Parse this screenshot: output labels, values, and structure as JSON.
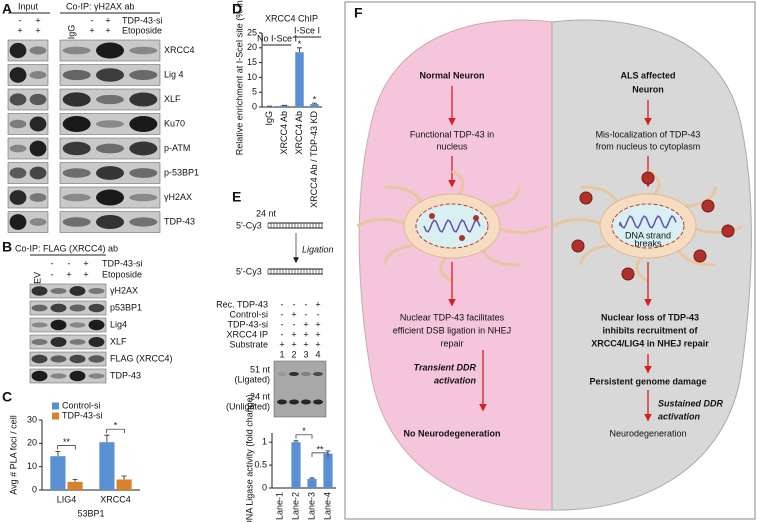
{
  "chart_data": [
    {
      "type": "bar",
      "panel": "C",
      "ylabel": "Avg # PLA foci / cell",
      "xlabel": "53BP1",
      "categories": [
        "LIG4",
        "XRCC4"
      ],
      "series": [
        {
          "name": "Control-si",
          "color": "#5b8fd4",
          "values": [
            14.5,
            20.5
          ],
          "errors": [
            2,
            3
          ]
        },
        {
          "name": "TDP-43-si",
          "color": "#d9822b",
          "values": [
            3.5,
            4.5
          ],
          "errors": [
            1,
            1.5
          ]
        }
      ],
      "ylim": [
        0,
        30
      ],
      "yticks": [
        0,
        10,
        20,
        30
      ],
      "annotations": [
        "**",
        "*"
      ]
    },
    {
      "type": "bar",
      "panel": "D",
      "title": "XRCC4 ChIP",
      "ylabel": "Relative enrichment at I-SceI site (% input)",
      "groups": [
        "No I-Sce I",
        "I-Sce I"
      ],
      "categories": [
        "IgG",
        "XRCC4 Ab",
        "XRCC4 Ab",
        "XRCC4 Ab / TDP-43 KD"
      ],
      "values": [
        0.2,
        0.5,
        18.5,
        1.0
      ],
      "errors": [
        0.1,
        0.1,
        1.5,
        0.3
      ],
      "color": "#5b8fd4",
      "ylim": [
        0,
        25
      ],
      "yticks": [
        0,
        5,
        10,
        15,
        20,
        25
      ],
      "annotations": [
        "*",
        "*"
      ]
    },
    {
      "type": "bar",
      "panel": "E",
      "ylabel": "DNA Ligase activity (fold change)",
      "categories": [
        "Lane-1",
        "Lane-2",
        "Lane-3",
        "Lane-4"
      ],
      "values": [
        0,
        1.0,
        0.2,
        0.75
      ],
      "errors": [
        0,
        0.03,
        0.02,
        0.06
      ],
      "color": "#5b8fd4",
      "ylim": [
        0,
        1.2
      ],
      "yticks": [
        0,
        0.5,
        1
      ],
      "annotations": [
        "*",
        "**"
      ]
    }
  ],
  "panels": {
    "A": {
      "letter": "A",
      "input": "Input",
      "coip": "Co-IP: γH2AX ab",
      "igg": "IgG",
      "conditions": [
        {
          "label": "TDP-43-si",
          "input": [
            "-",
            "+"
          ],
          "coip": [
            "-",
            "+"
          ]
        },
        {
          "label": "Etoposide",
          "input": [
            "+",
            "+"
          ],
          "coip": [
            "+",
            "+"
          ]
        }
      ],
      "bands": [
        "XRCC4",
        "Lig 4",
        "XLF",
        "Ku70",
        "p-ATM",
        "p-53BP1",
        "γH2AX",
        "TDP-43"
      ]
    },
    "B": {
      "letter": "B",
      "coip": "Co-IP: FLAG (XRCC4) ab",
      "ev": "EV",
      "conditions": [
        {
          "label": "TDP-43-si",
          "signs": [
            "-",
            "-",
            "+"
          ]
        },
        {
          "label": "Etoposide",
          "signs": [
            "-",
            "+",
            "+"
          ]
        }
      ],
      "bands": [
        "γH2AX",
        "p53BP1",
        "Lig4",
        "XLF",
        "FLAG (XRCC4)",
        "TDP-43"
      ]
    },
    "E": {
      "letter": "E",
      "cy3": "5′-Cy3",
      "length": "24 nt",
      "ligation": "Ligation",
      "rows": [
        {
          "label": "Rec. TDP-43",
          "signs": [
            "-",
            "-",
            "-",
            "+"
          ]
        },
        {
          "label": "Control-si",
          "signs": [
            "-",
            "+",
            "-",
            "-"
          ]
        },
        {
          "label": "TDP-43-si",
          "signs": [
            "-",
            "-",
            "+",
            "+"
          ]
        },
        {
          "label": "XRCC4 IP",
          "signs": [
            "-",
            "+",
            "+",
            "+"
          ]
        },
        {
          "label": "Substrate",
          "signs": [
            "+",
            "+",
            "+",
            "+"
          ]
        }
      ],
      "lanes": [
        "1",
        "2",
        "3",
        "4"
      ],
      "ligated": [
        "51 nt",
        "(Ligated)"
      ],
      "unligated": [
        "24 nt",
        "(Unligated)"
      ]
    },
    "F": {
      "letter": "F",
      "left": {
        "title": "Normal Neuron",
        "state": [
          "Functional TDP-43 in",
          "nucleus"
        ],
        "repair": [
          "Nuclear TDP-43 facilitates",
          "efficient DSB ligation in NHEJ",
          "repair"
        ],
        "ddr": [
          "Transient DDR",
          "activation"
        ],
        "outcome": "No Neurodegeneration"
      },
      "right": {
        "title": [
          "ALS affected",
          "Neuron"
        ],
        "state": [
          "Mis-localization of TDP-43",
          "from nucleus to cytoplasm"
        ],
        "breaks": [
          "DNA strand",
          "breaks"
        ],
        "repair": [
          "Nuclear loss of TDP-43",
          "inhibits recruitment of",
          "XRCC4/LIG4 in NHEJ repair"
        ],
        "damage": "Persistent genome damage",
        "ddr": [
          "Sustained DDR",
          "activation"
        ],
        "outcome": "Neurodegeneration"
      }
    }
  }
}
